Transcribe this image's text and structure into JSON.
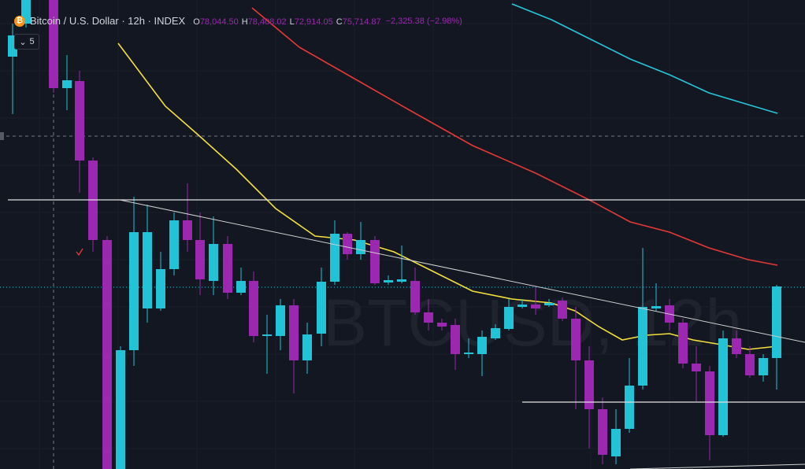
{
  "header": {
    "title": "Bitcoin / U.S. Dollar · 12h · INDEX",
    "ohlc": [
      {
        "key": "O",
        "value": "78,044.50"
      },
      {
        "key": "H",
        "value": "78,408.02"
      },
      {
        "key": "L",
        "value": "72,914.05"
      },
      {
        "key": "C",
        "value": "75,714.87"
      }
    ],
    "change": "−2,325.38 (−2.98%)",
    "indicators_count": "5"
  },
  "watermark": "BTCUSD, 12h"
}
